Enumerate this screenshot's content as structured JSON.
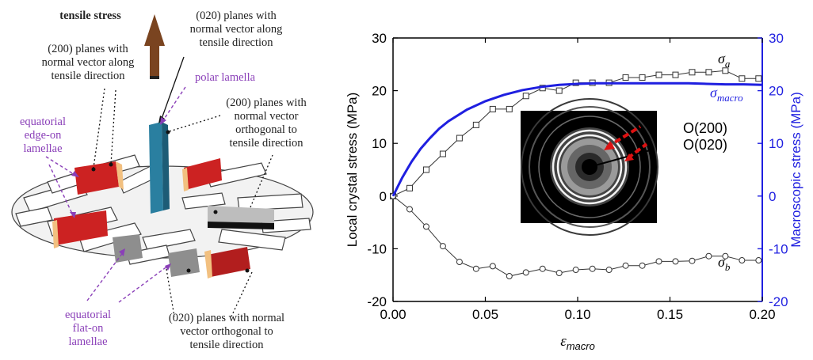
{
  "schematic": {
    "tensile_stress": "tensile stress",
    "label_020_parallel": [
      "(020) planes with",
      "normal vector along",
      "tensile direction"
    ],
    "label_200_parallel": [
      "(200) planes with",
      "normal vector along",
      "tensile direction"
    ],
    "polar_lamella": "polar lamella",
    "label_200_orthogonal": [
      "(200) planes with",
      "normal vector",
      "orthogonal to",
      "tensile direction"
    ],
    "equatorial_edge_on": [
      "equatorial",
      "edge-on",
      "lamellae"
    ],
    "equatorial_flat_on": [
      "equatorial",
      "flat-on",
      "lamellae"
    ],
    "label_020_orthogonal": [
      "(020) planes with normal",
      "vector orthogonal to",
      "tensile direction"
    ],
    "colors": {
      "arrow": "#7a4420",
      "purple_text": "#8a3fb8",
      "polar_lamella": "#2a7fa0",
      "red_lamella": "#cc2222"
    }
  },
  "chart_data": {
    "type": "line",
    "xlabel_symbol": "ε",
    "xlabel_sub": "macro",
    "ylabel_left": "Local crystal stress (MPa)",
    "ylabel_right": "Macroscopic stress (MPa)",
    "xlim": [
      0,
      0.2
    ],
    "ylim_left": [
      -20,
      30
    ],
    "ylim_right": [
      -20,
      30
    ],
    "x_ticks": [
      "0.00",
      "0.05",
      "0.10",
      "0.15",
      "0.20"
    ],
    "y_ticks": [
      "-20",
      "-10",
      "0",
      "10",
      "20",
      "30"
    ],
    "series": [
      {
        "name_symbol": "σ",
        "name_sub": "a",
        "marker": "square",
        "color": "#333333",
        "x": [
          0,
          0.009,
          0.018,
          0.027,
          0.036,
          0.045,
          0.054,
          0.063,
          0.072,
          0.081,
          0.09,
          0.099,
          0.108,
          0.117,
          0.126,
          0.135,
          0.144,
          0.153,
          0.162,
          0.171,
          0.18,
          0.189,
          0.198
        ],
        "y": [
          0,
          1.5,
          5,
          8,
          11,
          13.5,
          16.5,
          16.5,
          19,
          20.5,
          20,
          21.5,
          21.5,
          21.5,
          22.5,
          22.5,
          23,
          23,
          23.5,
          23.5,
          23.8,
          22.3,
          22.3
        ]
      },
      {
        "name_symbol": "σ",
        "name_sub": "b",
        "marker": "circle",
        "color": "#333333",
        "x": [
          0,
          0.009,
          0.018,
          0.027,
          0.036,
          0.045,
          0.054,
          0.063,
          0.072,
          0.081,
          0.09,
          0.099,
          0.108,
          0.117,
          0.126,
          0.135,
          0.144,
          0.153,
          0.162,
          0.171,
          0.18,
          0.189,
          0.198
        ],
        "y": [
          0,
          -2.5,
          -5.8,
          -9.5,
          -12.5,
          -13.8,
          -13.3,
          -15.2,
          -14.5,
          -13.8,
          -14.6,
          -14,
          -13.8,
          -14,
          -13.2,
          -13.2,
          -12.4,
          -12.4,
          -12.3,
          -11.4,
          -11.4,
          -12.2,
          -12.2
        ]
      },
      {
        "name_symbol": "σ",
        "name_sub": "macro",
        "marker": "none",
        "color": "#1f1fe0",
        "x": [
          0,
          0.005,
          0.01,
          0.015,
          0.02,
          0.025,
          0.03,
          0.04,
          0.05,
          0.06,
          0.07,
          0.08,
          0.09,
          0.1,
          0.11,
          0.12,
          0.13,
          0.14,
          0.15,
          0.16,
          0.17,
          0.18,
          0.19,
          0.2
        ],
        "y": [
          0,
          3.5,
          6.5,
          9,
          11,
          12.8,
          14.2,
          16.4,
          18.0,
          19.2,
          20.1,
          20.7,
          21.1,
          21.3,
          21.4,
          21.4,
          21.4,
          21.4,
          21.4,
          21.4,
          21.3,
          21.2,
          21.2,
          21.1
        ]
      }
    ],
    "inset": {
      "label_200": "O(200)",
      "label_020": "O(020)",
      "arrow_color": "#dd1111"
    }
  }
}
